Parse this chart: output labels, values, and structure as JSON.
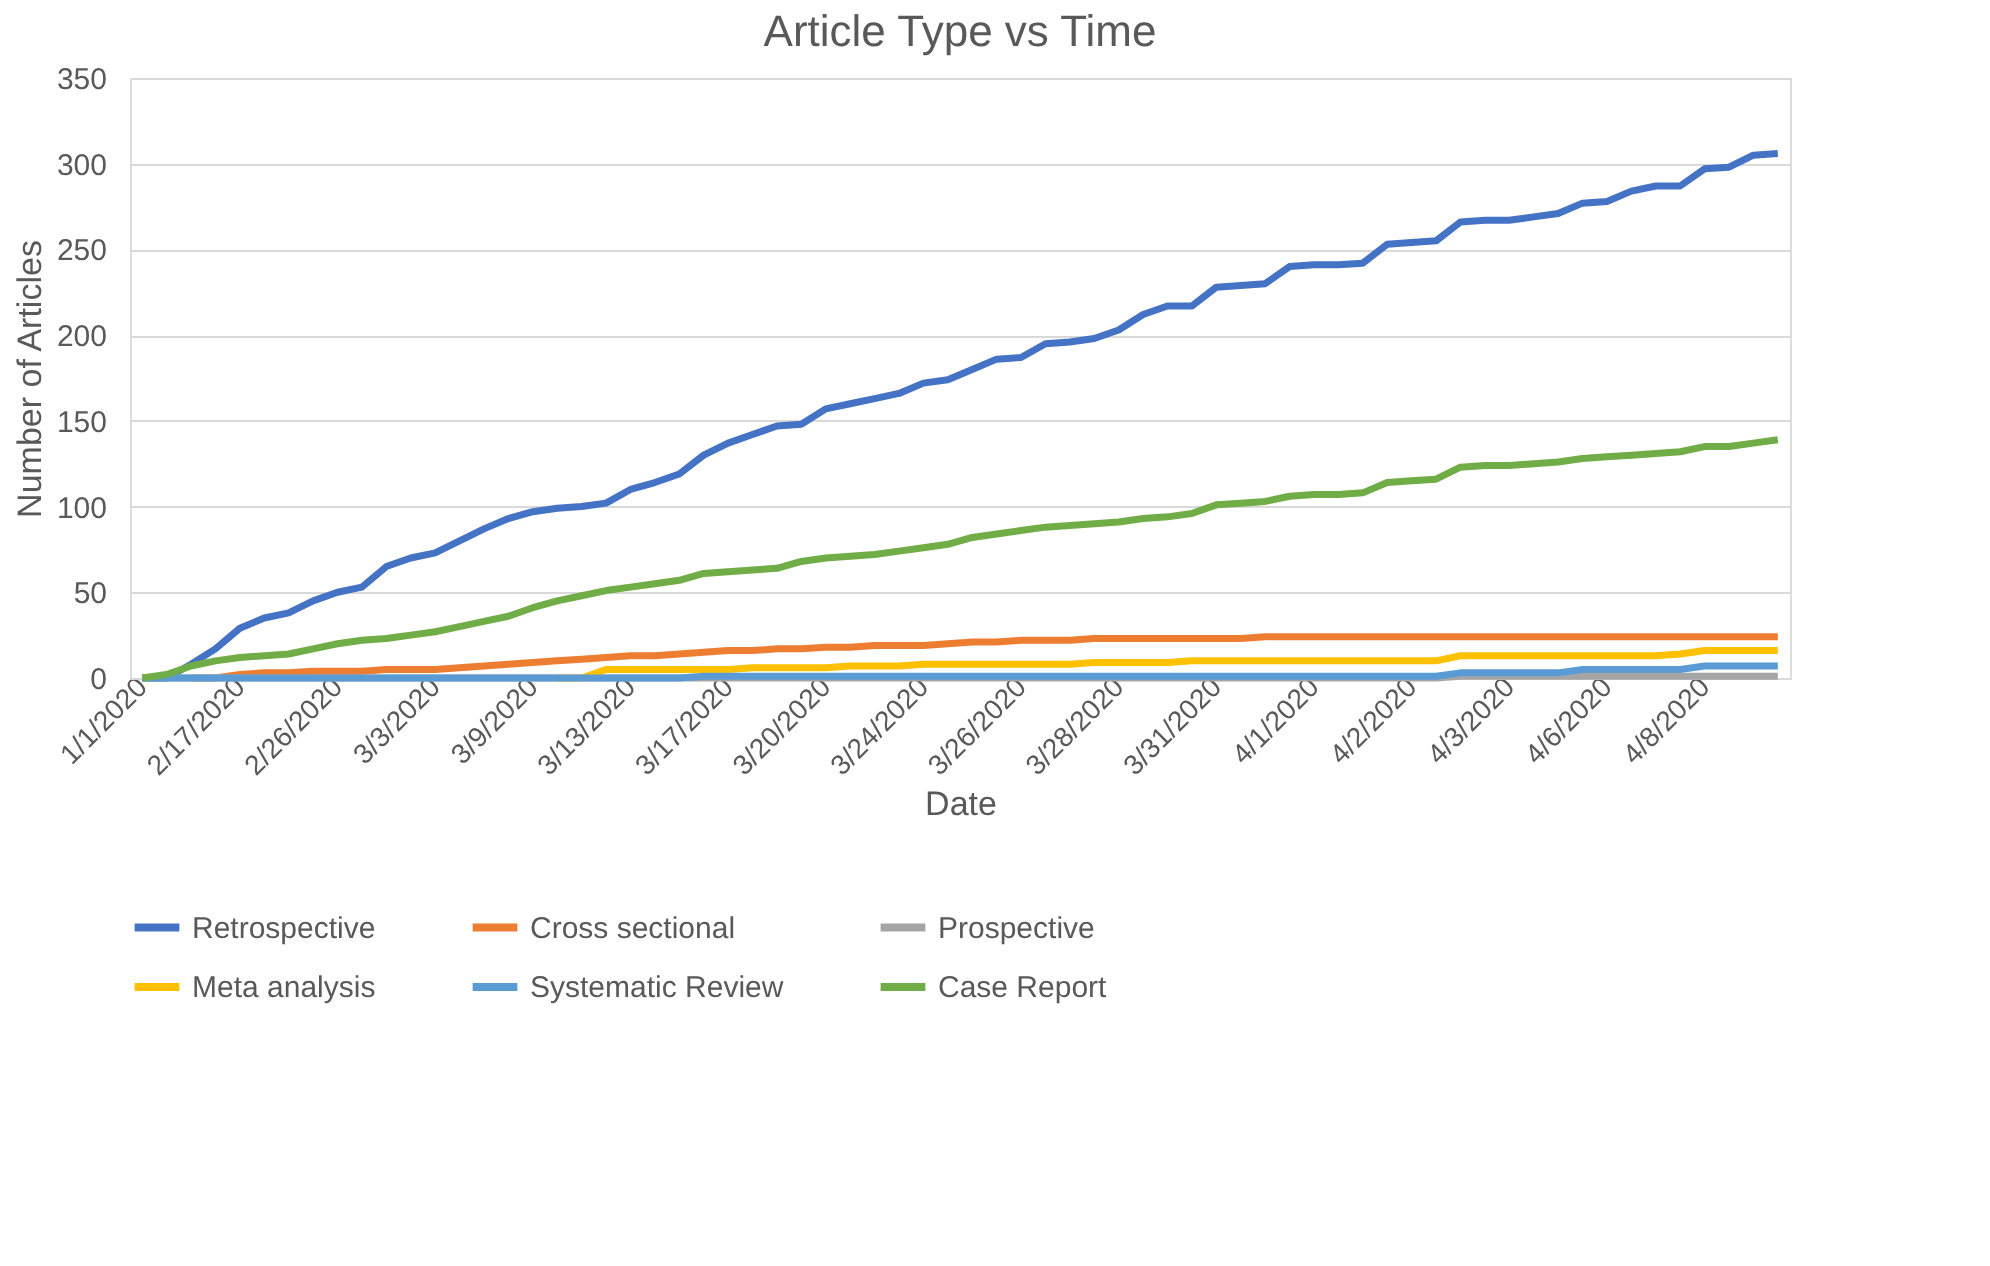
{
  "chart_data": {
    "type": "line",
    "title": "Article Type vs Time",
    "xlabel": "Date",
    "ylabel": "Number of Articles",
    "categories": [
      "1/1/2020",
      null,
      null,
      null,
      "2/17/2020",
      null,
      null,
      null,
      "2/26/2020",
      null,
      null,
      null,
      "3/3/2020",
      null,
      null,
      null,
      "3/9/2020",
      null,
      null,
      null,
      "3/13/2020",
      null,
      null,
      null,
      "3/17/2020",
      null,
      null,
      null,
      "3/20/2020",
      null,
      null,
      null,
      "3/24/2020",
      null,
      null,
      null,
      "3/26/2020",
      null,
      null,
      null,
      "3/28/2020",
      null,
      null,
      null,
      "3/31/2020",
      null,
      null,
      null,
      "4/1/2020",
      null,
      null,
      null,
      "4/2/2020",
      null,
      null,
      null,
      "4/3/2020",
      null,
      null,
      null,
      "4/6/2020",
      null,
      null,
      null,
      "4/8/2020",
      null,
      null,
      null
    ],
    "series": [
      {
        "name": "Retrospective",
        "color": "#4472c4",
        "values": [
          0,
          0,
          8,
          17,
          29,
          35,
          38,
          45,
          50,
          53,
          65,
          70,
          73,
          80,
          87,
          93,
          97,
          99,
          100,
          102,
          110,
          114,
          119,
          130,
          137,
          142,
          147,
          148,
          157,
          160,
          163,
          166,
          172,
          174,
          180,
          186,
          187,
          195,
          196,
          198,
          203,
          212,
          217,
          217,
          228,
          229,
          230,
          240,
          241,
          241,
          242,
          253,
          254,
          255,
          266,
          267,
          267,
          269,
          271,
          277,
          278,
          284,
          287,
          287,
          297,
          298,
          305,
          306
        ]
      },
      {
        "name": "Cross sectional",
        "color": "#ed7d31",
        "values": [
          null,
          null,
          0,
          0,
          2,
          3,
          3,
          4,
          4,
          4,
          5,
          5,
          5,
          6,
          7,
          8,
          9,
          10,
          11,
          12,
          13,
          13,
          14,
          15,
          16,
          16,
          17,
          17,
          18,
          18,
          19,
          19,
          19,
          20,
          21,
          21,
          22,
          22,
          22,
          23,
          23,
          23,
          23,
          23,
          23,
          23,
          24,
          24,
          24,
          24,
          24,
          24,
          24,
          24,
          24,
          24,
          24,
          24,
          24,
          24,
          24,
          24,
          24,
          24,
          24,
          24,
          24,
          24
        ]
      },
      {
        "name": "Prospective",
        "color": "#a5a5a5",
        "values": [
          0,
          0,
          0,
          0,
          0,
          0,
          0,
          0,
          0,
          0,
          0,
          0,
          0,
          0,
          0,
          0,
          0,
          0,
          0,
          0,
          0,
          0,
          0,
          0,
          0,
          0,
          0,
          0,
          0,
          0,
          0,
          0,
          0,
          0,
          0,
          0,
          0,
          0,
          0,
          0,
          0,
          0,
          0,
          0,
          0,
          0,
          0,
          0,
          0,
          0,
          0,
          0,
          0,
          0,
          1,
          1,
          1,
          1,
          1,
          1,
          1,
          1,
          1,
          1,
          1,
          1,
          1,
          1
        ]
      },
      {
        "name": "Meta analysis",
        "color": "#ffc000",
        "values": [
          null,
          null,
          null,
          null,
          null,
          null,
          null,
          null,
          null,
          null,
          null,
          null,
          null,
          null,
          null,
          null,
          null,
          0,
          0,
          5,
          5,
          5,
          5,
          5,
          5,
          6,
          6,
          6,
          6,
          7,
          7,
          7,
          8,
          8,
          8,
          8,
          8,
          8,
          8,
          9,
          9,
          9,
          9,
          10,
          10,
          10,
          10,
          10,
          10,
          10,
          10,
          10,
          10,
          10,
          13,
          13,
          13,
          13,
          13,
          13,
          13,
          13,
          13,
          14,
          16,
          16,
          16,
          16
        ]
      },
      {
        "name": "Systematic Review",
        "color": "#5b9bd5",
        "values": [
          0,
          0,
          0,
          0,
          0,
          0,
          0,
          0,
          0,
          0,
          0,
          0,
          0,
          0,
          0,
          0,
          0,
          0,
          0,
          0,
          0,
          0,
          0,
          1,
          1,
          1,
          1,
          1,
          1,
          1,
          1,
          1,
          1,
          1,
          1,
          1,
          1,
          1,
          1,
          1,
          1,
          1,
          1,
          1,
          1,
          1,
          1,
          1,
          1,
          1,
          1,
          1,
          1,
          1,
          3,
          3,
          3,
          3,
          3,
          5,
          5,
          5,
          5,
          5,
          7,
          7,
          7,
          7
        ]
      },
      {
        "name": "Case Report",
        "color": "#70ad47",
        "values": [
          0,
          2,
          7,
          10,
          12,
          13,
          14,
          17,
          20,
          22,
          23,
          25,
          27,
          30,
          33,
          36,
          41,
          45,
          48,
          51,
          53,
          55,
          57,
          61,
          62,
          63,
          64,
          68,
          70,
          71,
          72,
          74,
          76,
          78,
          82,
          84,
          86,
          88,
          89,
          90,
          91,
          93,
          94,
          96,
          101,
          102,
          103,
          106,
          107,
          107,
          108,
          114,
          115,
          116,
          123,
          124,
          124,
          125,
          126,
          128,
          129,
          130,
          131,
          132,
          135,
          135,
          137,
          139
        ]
      }
    ],
    "ylim": [
      0,
      350
    ],
    "yticks": [
      0,
      50,
      100,
      150,
      200,
      250,
      300,
      350
    ],
    "grid": "y",
    "legend": "bottom",
    "line_style": "solid",
    "marker": "none"
  }
}
